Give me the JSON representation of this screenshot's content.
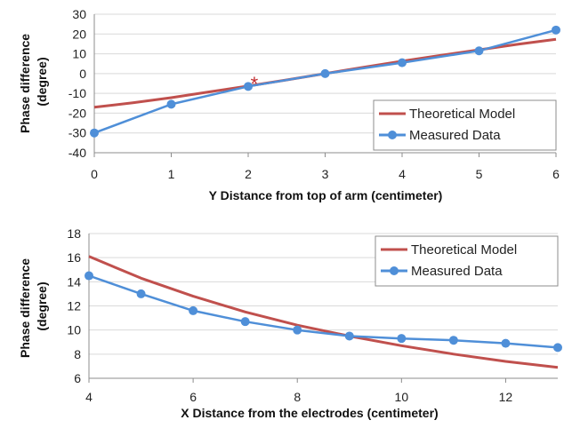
{
  "chart_data": [
    {
      "type": "line",
      "title": "",
      "xlabel": "Y Distance from top of arm (centimeter)",
      "ylabel": "Phase difference\n(degree)",
      "xlim": [
        0,
        6
      ],
      "ylim": [
        -40,
        30
      ],
      "xticks": [
        "0",
        "1",
        "2",
        "3",
        "4",
        "5",
        "6"
      ],
      "yticks": [
        "30",
        "20",
        "10",
        "0",
        "-10",
        "-20",
        "-30",
        "-40"
      ],
      "grid": "horizontal",
      "legend": "bottom-right",
      "annotation": {
        "text": "*",
        "x": 2.08,
        "y": -4,
        "color": "#c0282c"
      },
      "series": [
        {
          "name": "Theoretical Model",
          "color": "#c0504d",
          "markers": false,
          "x": [
            0,
            0.5,
            1,
            1.5,
            2,
            2.5,
            3,
            3.5,
            4,
            4.5,
            5,
            5.5,
            6
          ],
          "y": [
            -17,
            -14.8,
            -12.2,
            -9.2,
            -6.3,
            -3.2,
            0,
            3.2,
            6.3,
            9.2,
            12,
            14.8,
            17.3
          ]
        },
        {
          "name": "Measured Data",
          "color": "#4f8fd8",
          "markers": true,
          "x": [
            0,
            1,
            2,
            3,
            4,
            5,
            6
          ],
          "y": [
            -30,
            -15.5,
            -6.5,
            0,
            5.5,
            11.5,
            22
          ]
        }
      ]
    },
    {
      "type": "line",
      "title": "",
      "xlabel": "X Distance from the electrodes (centimeter)",
      "ylabel": "Phase difference\n(degree)",
      "xlim": [
        4,
        13
      ],
      "ylim": [
        6,
        18
      ],
      "xticks": [
        "4",
        "6",
        "8",
        "10",
        "12"
      ],
      "yticks": [
        "18",
        "16",
        "14",
        "12",
        "10",
        "8",
        "6"
      ],
      "grid": "horizontal",
      "legend": "top-right",
      "series": [
        {
          "name": "Theoretical Model",
          "color": "#c0504d",
          "markers": false,
          "x": [
            4,
            5,
            6,
            7,
            8,
            9,
            10,
            11,
            12,
            13
          ],
          "y": [
            16.1,
            14.3,
            12.8,
            11.5,
            10.4,
            9.5,
            8.7,
            8.0,
            7.4,
            6.9
          ]
        },
        {
          "name": "Measured Data",
          "color": "#4f8fd8",
          "markers": true,
          "x": [
            4,
            5,
            6,
            7,
            8,
            9,
            10,
            11,
            12,
            13
          ],
          "y": [
            14.5,
            13.0,
            11.6,
            10.7,
            10.0,
            9.5,
            9.3,
            9.15,
            8.9,
            8.55
          ]
        }
      ]
    }
  ]
}
